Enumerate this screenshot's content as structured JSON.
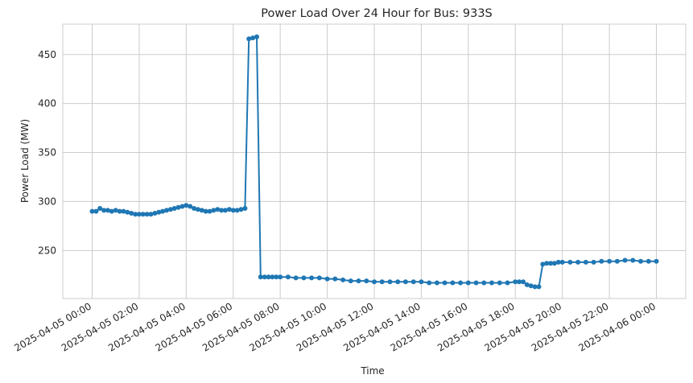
{
  "chart_data": {
    "type": "line",
    "title": "Power Load Over 24 Hour for Bus: 933S",
    "xlabel": "Time",
    "ylabel": "Power Load (MW)",
    "x_tick_labels": [
      "2025-04-05 00:00",
      "2025-04-05 02:00",
      "2025-04-05 04:00",
      "2025-04-05 06:00",
      "2025-04-05 08:00",
      "2025-04-05 10:00",
      "2025-04-05 12:00",
      "2025-04-05 14:00",
      "2025-04-05 16:00",
      "2025-04-05 18:00",
      "2025-04-05 20:00",
      "2025-04-05 22:00",
      "2025-04-06 00:00"
    ],
    "y_ticks": [
      250,
      300,
      350,
      400,
      450
    ],
    "xlim": [
      "2025-04-04 22:45",
      "2025-04-06 01:15"
    ],
    "ylim": [
      201,
      481
    ],
    "grid": true,
    "series_color": "#1f77b4",
    "marker": "circle",
    "series": [
      {
        "x": [
          "2025-04-05 00:00",
          "2025-04-05 00:10",
          "2025-04-05 00:20",
          "2025-04-05 00:30",
          "2025-04-05 00:40",
          "2025-04-05 00:50",
          "2025-04-05 01:00",
          "2025-04-05 01:10",
          "2025-04-05 01:20",
          "2025-04-05 01:30",
          "2025-04-05 01:40",
          "2025-04-05 01:50",
          "2025-04-05 02:00",
          "2025-04-05 02:10",
          "2025-04-05 02:20",
          "2025-04-05 02:30",
          "2025-04-05 02:40",
          "2025-04-05 02:50",
          "2025-04-05 03:00",
          "2025-04-05 03:10",
          "2025-04-05 03:20",
          "2025-04-05 03:30",
          "2025-04-05 03:40",
          "2025-04-05 03:50",
          "2025-04-05 04:00",
          "2025-04-05 04:10",
          "2025-04-05 04:20",
          "2025-04-05 04:30",
          "2025-04-05 04:40",
          "2025-04-05 04:50",
          "2025-04-05 05:00",
          "2025-04-05 05:10",
          "2025-04-05 05:20",
          "2025-04-05 05:30",
          "2025-04-05 05:40",
          "2025-04-05 05:50",
          "2025-04-05 06:00",
          "2025-04-05 06:10",
          "2025-04-05 06:20",
          "2025-04-05 06:30",
          "2025-04-05 06:40",
          "2025-04-05 06:50",
          "2025-04-05 07:00",
          "2025-04-05 07:10",
          "2025-04-05 07:20",
          "2025-04-05 07:30",
          "2025-04-05 07:40",
          "2025-04-05 07:50",
          "2025-04-05 08:00",
          "2025-04-05 08:20",
          "2025-04-05 08:40",
          "2025-04-05 09:00",
          "2025-04-05 09:20",
          "2025-04-05 09:40",
          "2025-04-05 10:00",
          "2025-04-05 10:20",
          "2025-04-05 10:40",
          "2025-04-05 11:00",
          "2025-04-05 11:20",
          "2025-04-05 11:40",
          "2025-04-05 12:00",
          "2025-04-05 12:20",
          "2025-04-05 12:40",
          "2025-04-05 13:00",
          "2025-04-05 13:20",
          "2025-04-05 13:40",
          "2025-04-05 14:00",
          "2025-04-05 14:20",
          "2025-04-05 14:40",
          "2025-04-05 15:00",
          "2025-04-05 15:20",
          "2025-04-05 15:40",
          "2025-04-05 16:00",
          "2025-04-05 16:20",
          "2025-04-05 16:40",
          "2025-04-05 17:00",
          "2025-04-05 17:20",
          "2025-04-05 17:40",
          "2025-04-05 18:00",
          "2025-04-05 18:10",
          "2025-04-05 18:20",
          "2025-04-05 18:30",
          "2025-04-05 18:40",
          "2025-04-05 18:50",
          "2025-04-05 19:00",
          "2025-04-05 19:10",
          "2025-04-05 19:20",
          "2025-04-05 19:30",
          "2025-04-05 19:40",
          "2025-04-05 19:50",
          "2025-04-05 20:00",
          "2025-04-05 20:20",
          "2025-04-05 20:40",
          "2025-04-05 21:00",
          "2025-04-05 21:20",
          "2025-04-05 21:40",
          "2025-04-05 22:00",
          "2025-04-05 22:20",
          "2025-04-05 22:40",
          "2025-04-05 23:00",
          "2025-04-05 23:20",
          "2025-04-05 23:40",
          "2025-04-06 00:00"
        ],
        "values": [
          290,
          290,
          293,
          291,
          291,
          290,
          291,
          290,
          290,
          289,
          288,
          287,
          287,
          287,
          287,
          287,
          288,
          289,
          290,
          291,
          292,
          293,
          294,
          295,
          296,
          295,
          293,
          292,
          291,
          290,
          290,
          291,
          292,
          291,
          291,
          292,
          291,
          291,
          292,
          293,
          466,
          467,
          468,
          223,
          223,
          223,
          223,
          223,
          223,
          223,
          222,
          222,
          222,
          222,
          221,
          221,
          220,
          219,
          219,
          219,
          218,
          218,
          218,
          218,
          218,
          218,
          218,
          217,
          217,
          217,
          217,
          217,
          217,
          217,
          217,
          217,
          217,
          217,
          218,
          218,
          218,
          215,
          214,
          213,
          213,
          236,
          237,
          237,
          237,
          238,
          238,
          238,
          238,
          238,
          238,
          239,
          239,
          239,
          240,
          240,
          239,
          239,
          239
        ]
      }
    ]
  }
}
